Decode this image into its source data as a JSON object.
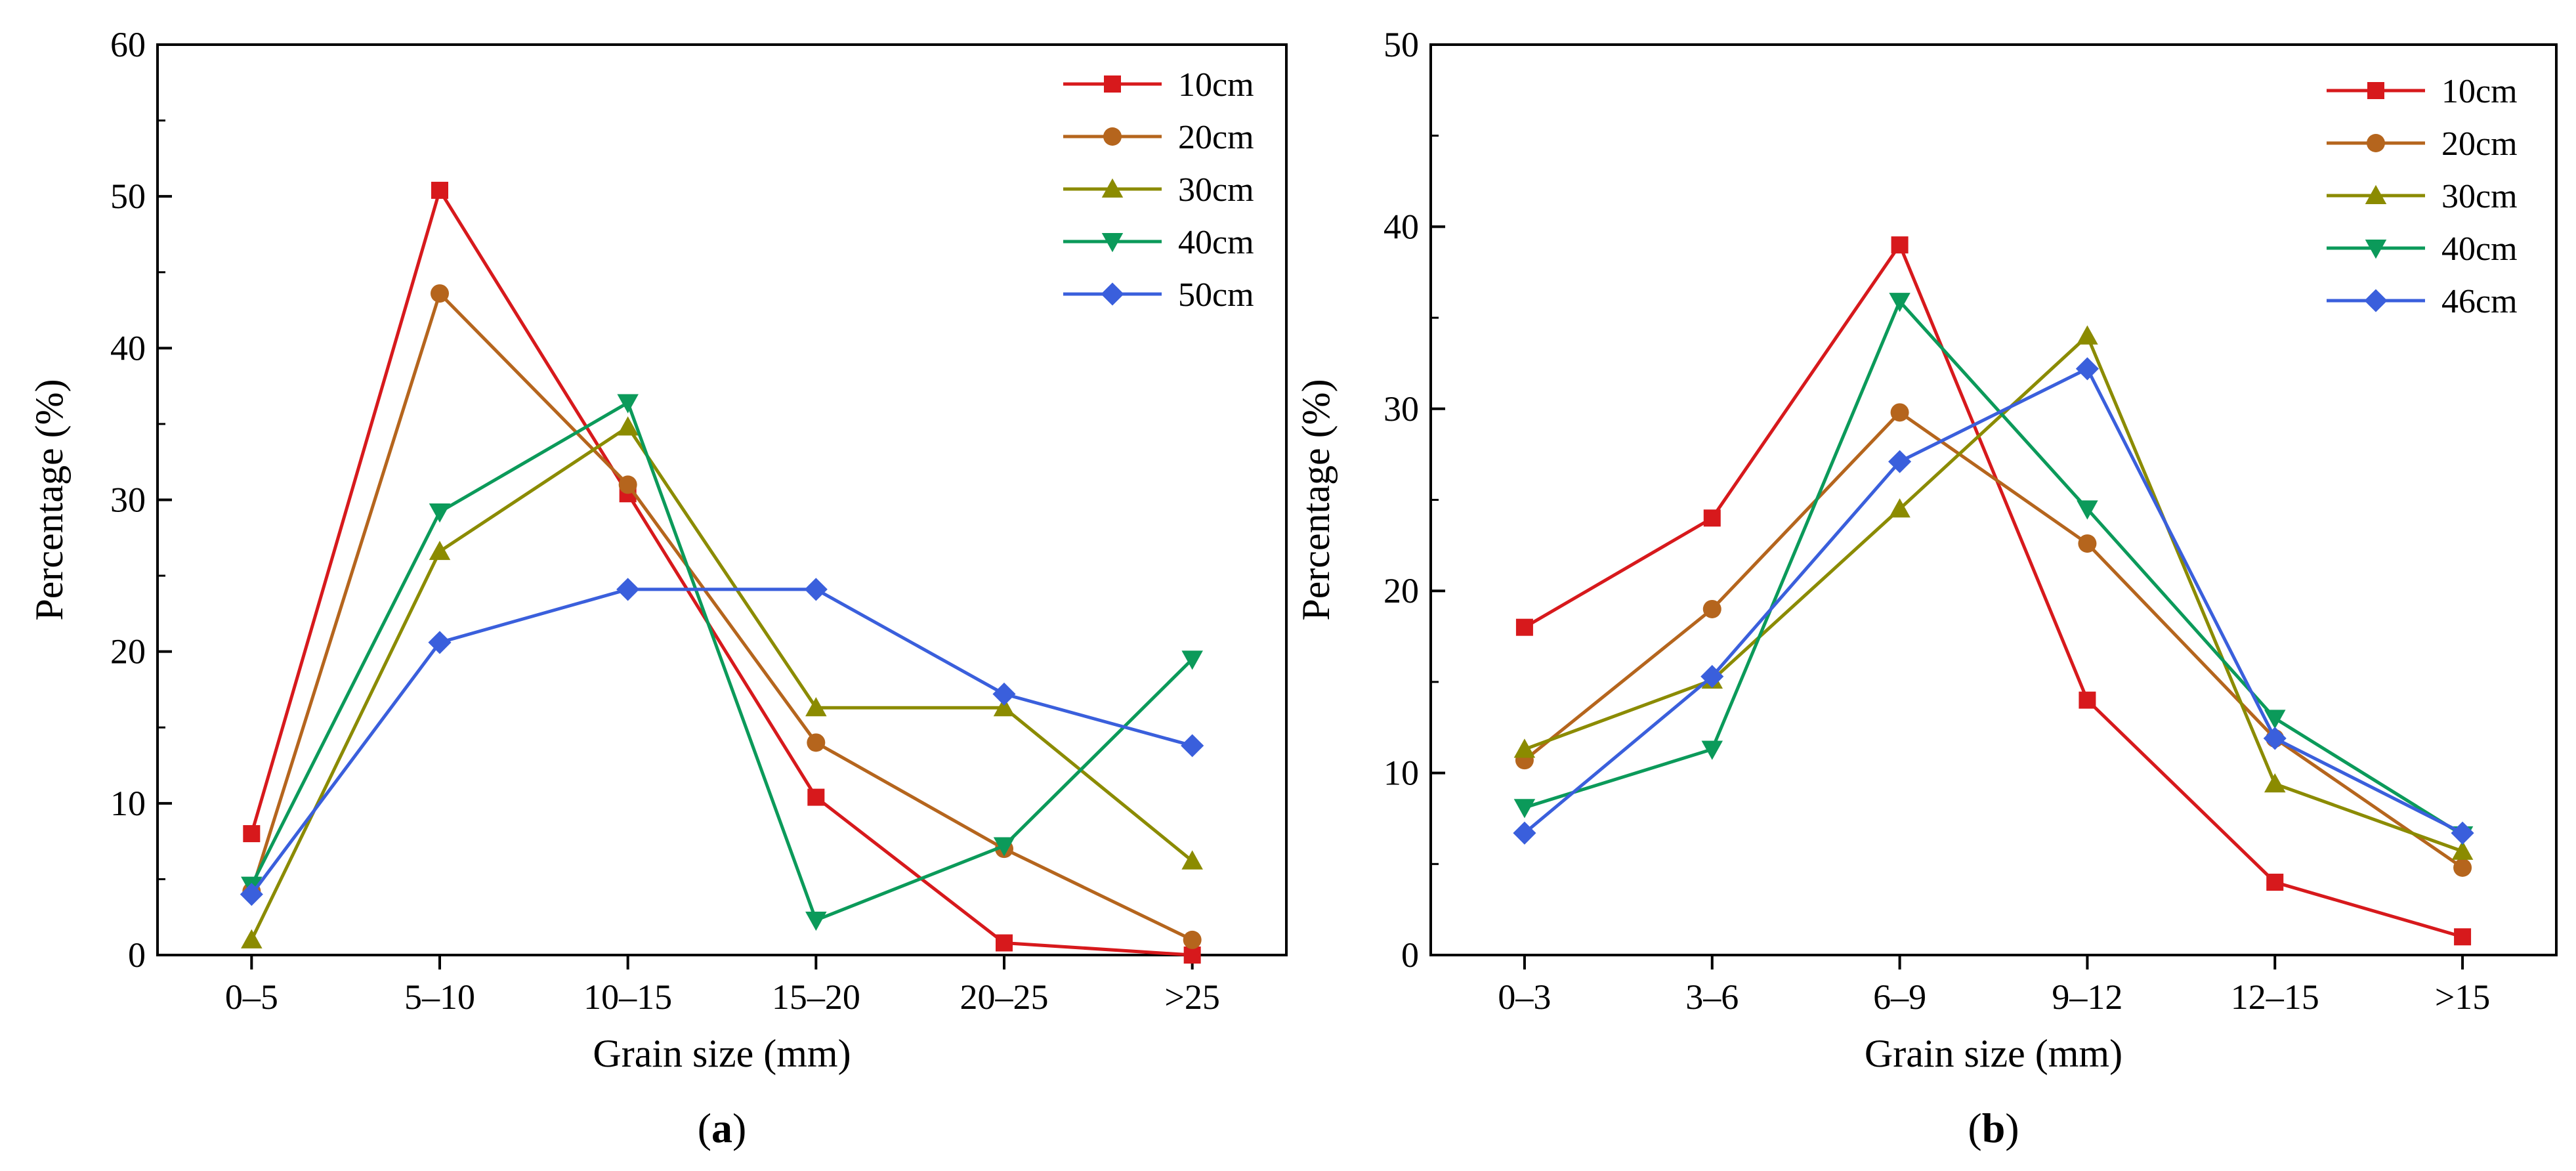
{
  "chart_data": [
    {
      "type": "line",
      "panel": "a",
      "panel_label_open": "(",
      "panel_label_letter": "a",
      "panel_label_close": ")",
      "xlabel": "Grain size (mm)",
      "ylabel": "Percentage (%)",
      "ylim": [
        0,
        60
      ],
      "yticks": [
        0,
        10,
        20,
        30,
        40,
        50,
        60
      ],
      "categories": [
        "0–5",
        "5–10",
        "10–15",
        "15–20",
        "20–25",
        ">25"
      ],
      "legend_position": "top-right",
      "series": [
        {
          "name": "10cm",
          "color": "#d7191c",
          "marker": "square",
          "values": [
            8.0,
            50.4,
            30.4,
            10.4,
            0.8,
            0.0
          ]
        },
        {
          "name": "20cm",
          "color": "#b5651d",
          "marker": "circle",
          "values": [
            4.2,
            43.6,
            31.0,
            14.0,
            7.0,
            1.0
          ]
        },
        {
          "name": "30cm",
          "color": "#8b8b00",
          "marker": "triangle-up",
          "values": [
            1.0,
            26.6,
            34.8,
            16.3,
            16.3,
            6.2
          ]
        },
        {
          "name": "40cm",
          "color": "#0b9a5a",
          "marker": "triangle-down",
          "values": [
            4.6,
            29.2,
            36.4,
            2.3,
            7.2,
            19.5
          ]
        },
        {
          "name": "50cm",
          "color": "#3a5fdc",
          "marker": "diamond",
          "values": [
            4.0,
            20.6,
            24.1,
            24.1,
            17.2,
            13.8
          ]
        }
      ]
    },
    {
      "type": "line",
      "panel": "b",
      "panel_label_open": "(",
      "panel_label_letter": "b",
      "panel_label_close": ")",
      "xlabel": "Grain size (mm)",
      "ylabel": "Percentage (%)",
      "ylim": [
        0,
        50
      ],
      "yticks": [
        0,
        10,
        20,
        30,
        40,
        50
      ],
      "categories": [
        "0–3",
        "3–6",
        "6–9",
        "9–12",
        "12–15",
        ">15"
      ],
      "legend_position": "top-right",
      "series": [
        {
          "name": "10cm",
          "color": "#d7191c",
          "marker": "square",
          "values": [
            18.0,
            24.0,
            39.0,
            14.0,
            4.0,
            1.0
          ]
        },
        {
          "name": "20cm",
          "color": "#b5651d",
          "marker": "circle",
          "values": [
            10.7,
            19.0,
            29.8,
            22.6,
            11.9,
            4.8
          ]
        },
        {
          "name": "30cm",
          "color": "#8b8b00",
          "marker": "triangle-up",
          "values": [
            11.3,
            15.1,
            24.5,
            34.0,
            9.4,
            5.7
          ]
        },
        {
          "name": "40cm",
          "color": "#0b9a5a",
          "marker": "triangle-down",
          "values": [
            8.1,
            11.3,
            35.9,
            24.5,
            13.0,
            6.6
          ]
        },
        {
          "name": "46cm",
          "color": "#3a5fdc",
          "marker": "diamond",
          "values": [
            6.7,
            15.3,
            27.1,
            32.2,
            11.9,
            6.7
          ]
        }
      ]
    }
  ]
}
